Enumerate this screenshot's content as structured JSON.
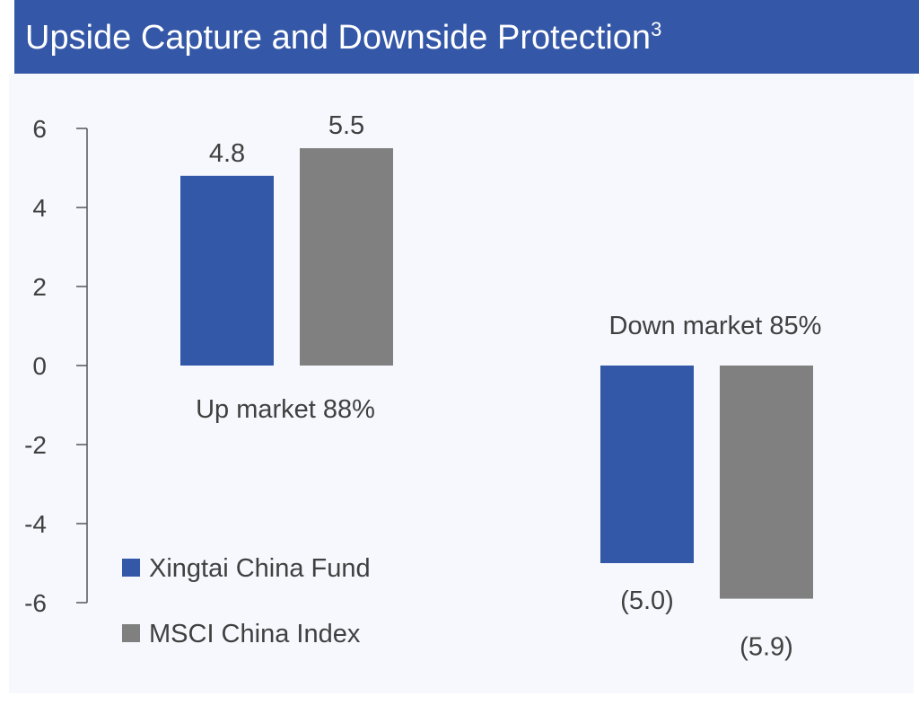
{
  "header": {
    "title": "Upside Capture and Downside Protection",
    "footnote_marker": "3"
  },
  "colors": {
    "header_bg": "#3557a7",
    "plot_bg": "#f6f8fd",
    "fund": "#3358a8",
    "index": "#808080",
    "text": "#404040"
  },
  "chart_data": {
    "type": "bar",
    "title": "Upside Capture and Downside Protection",
    "categories": [
      "Up market 88%",
      "Down market 85%"
    ],
    "series": [
      {
        "name": "Xingtai China Fund",
        "values": [
          4.8,
          -5.0
        ],
        "labels": [
          "4.8",
          "(5.0)"
        ],
        "color": "#3358a8"
      },
      {
        "name": "MSCI China Index",
        "values": [
          5.5,
          -5.9
        ],
        "labels": [
          "5.5",
          "(5.9)"
        ],
        "color": "#808080"
      }
    ],
    "yticks": [
      "6",
      "4",
      "2",
      "0",
      "-2",
      "-4",
      "-6"
    ],
    "ylim": [
      -6,
      6
    ],
    "xlabel": "",
    "ylabel": "",
    "grid": false,
    "legend_position": "bottom-left"
  }
}
